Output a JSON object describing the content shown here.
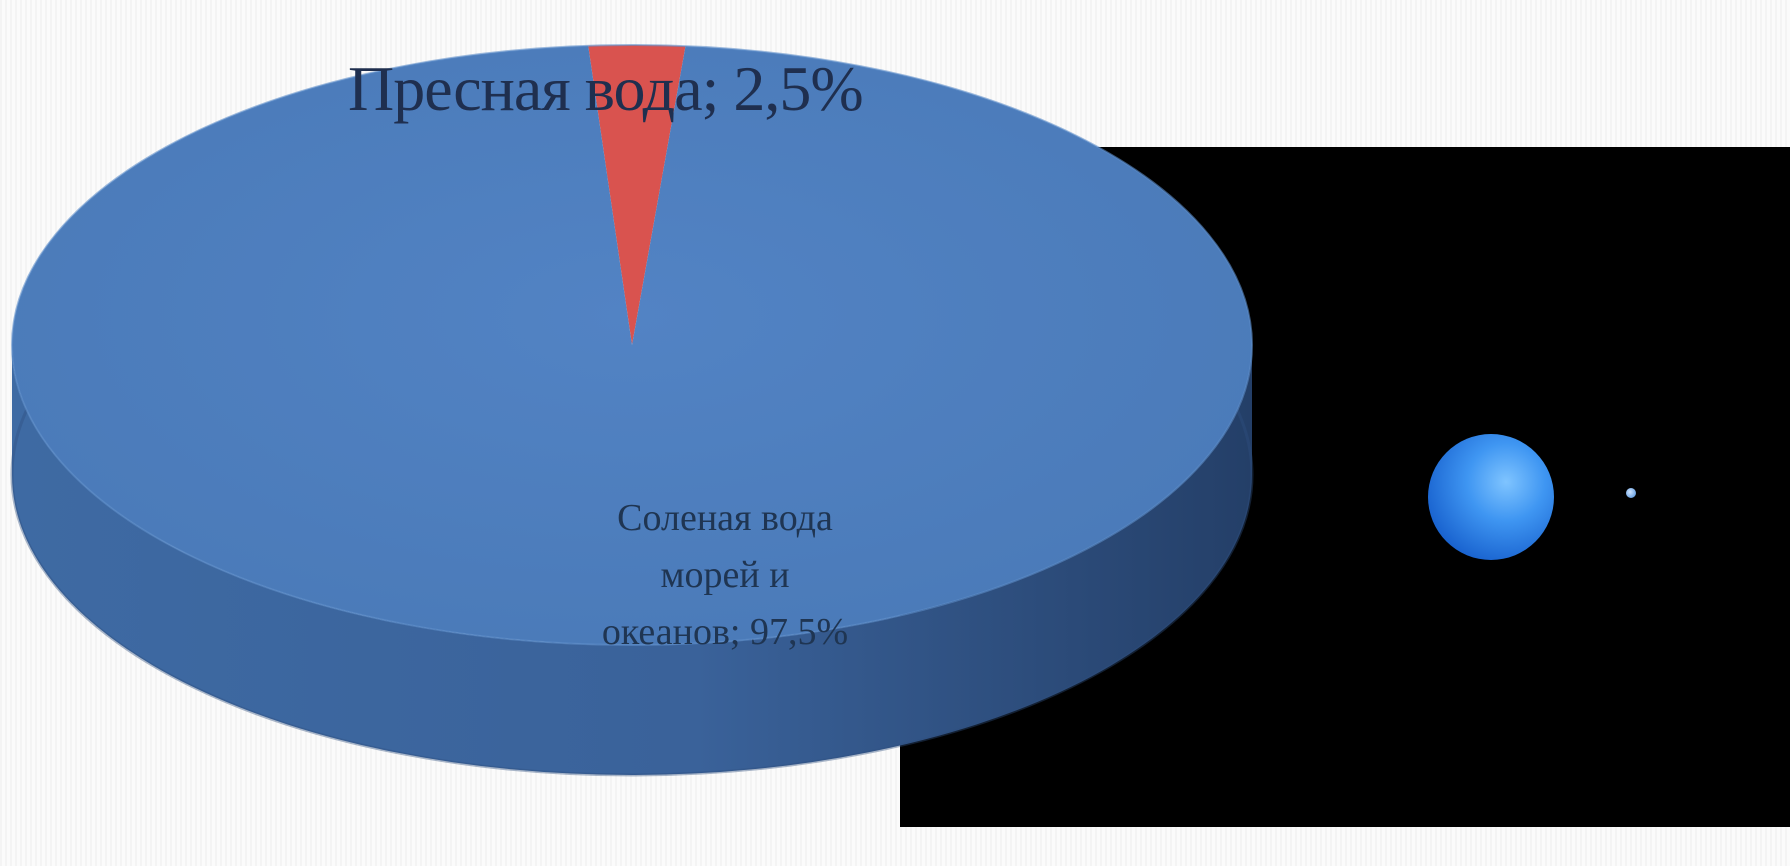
{
  "chart_data": {
    "type": "pie",
    "title": "",
    "slices": [
      {
        "label": "Пресная вода",
        "value": 2.5,
        "display": "Пресная вода; 2,5%",
        "color": "#d9534f"
      },
      {
        "label": "Соленая вода морей и океанов",
        "value": 97.5,
        "display_lines": [
          "Соленая вода",
          "морей и",
          "океанов; 97,5%"
        ],
        "color": "#4f7fbf"
      }
    ],
    "legend": "none",
    "style": "3d"
  },
  "illustration": {
    "globe_icon": "water-globe-icon",
    "drop_icon": "water-drop-icon",
    "background_color": "#000000"
  }
}
